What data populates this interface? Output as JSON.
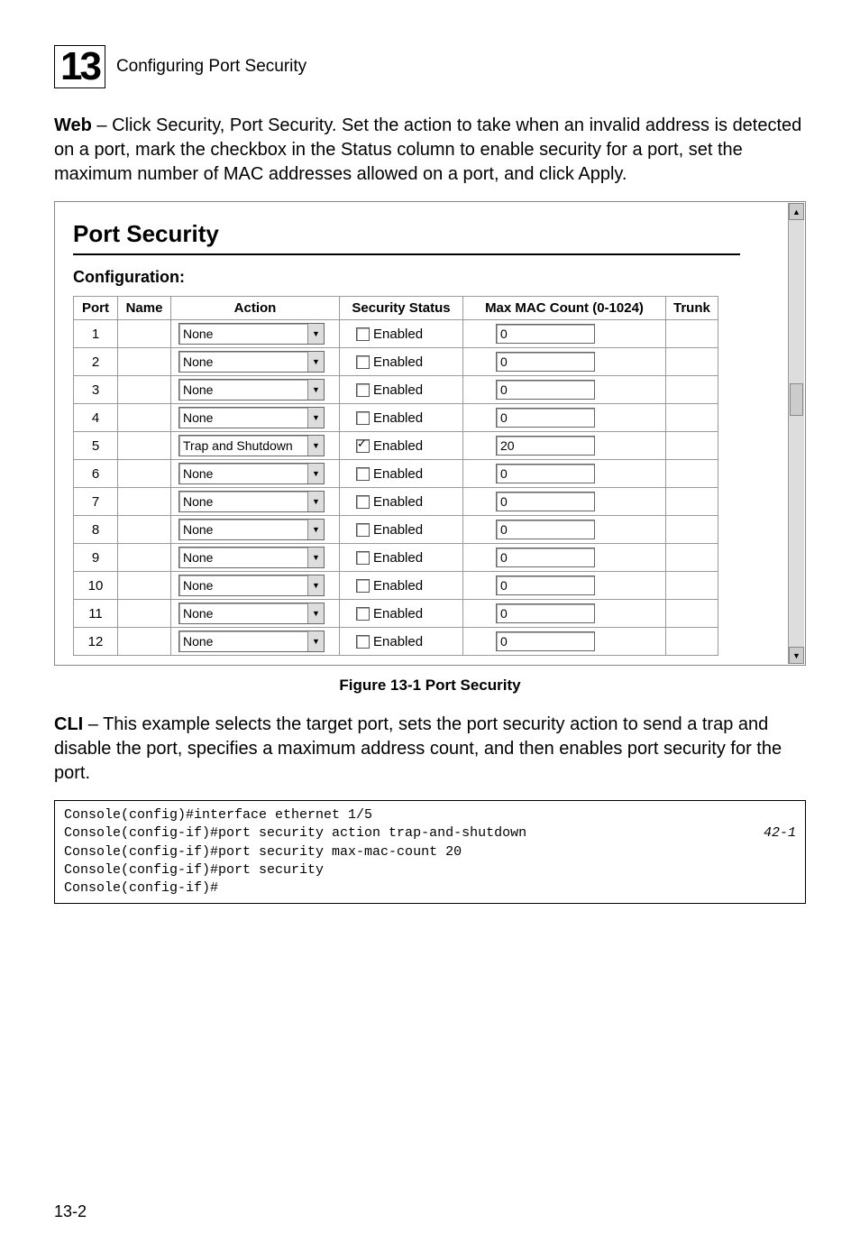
{
  "chapter": {
    "number": "13",
    "title": "Configuring Port Security"
  },
  "intro": "Web – Click Security, Port Security. Set the action to take when an invalid address is detected on a port, mark the checkbox in the Status column to enable security for a port, set the maximum number of MAC addresses allowed on a port, and click Apply.",
  "screenshot": {
    "title": "Port Security",
    "config_label": "Configuration:",
    "headers": {
      "port": "Port",
      "name": "Name",
      "action": "Action",
      "status": "Security Status",
      "count": "Max MAC Count (0-1024)",
      "trunk": "Trunk"
    },
    "status_label": "Enabled",
    "rows": [
      {
        "port": "1",
        "action": "None",
        "checked": false,
        "count": "0"
      },
      {
        "port": "2",
        "action": "None",
        "checked": false,
        "count": "0"
      },
      {
        "port": "3",
        "action": "None",
        "checked": false,
        "count": "0"
      },
      {
        "port": "4",
        "action": "None",
        "checked": false,
        "count": "0"
      },
      {
        "port": "5",
        "action": "Trap and Shutdown",
        "checked": true,
        "count": "20"
      },
      {
        "port": "6",
        "action": "None",
        "checked": false,
        "count": "0"
      },
      {
        "port": "7",
        "action": "None",
        "checked": false,
        "count": "0"
      },
      {
        "port": "8",
        "action": "None",
        "checked": false,
        "count": "0"
      },
      {
        "port": "9",
        "action": "None",
        "checked": false,
        "count": "0"
      },
      {
        "port": "10",
        "action": "None",
        "checked": false,
        "count": "0"
      },
      {
        "port": "11",
        "action": "None",
        "checked": false,
        "count": "0"
      },
      {
        "port": "12",
        "action": "None",
        "checked": false,
        "count": "0"
      }
    ]
  },
  "figure_caption": "Figure 13-1  Port Security",
  "cli_intro": "CLI – This example selects the target port, sets the port security action to send a trap and disable the port, specifies a maximum address count, and then enables port security for the port.",
  "cli": {
    "lines": [
      "Console(config)#interface ethernet 1/5",
      "Console(config-if)#port security action trap-and-shutdown",
      "Console(config-if)#port security max-mac-count 20",
      "Console(config-if)#port security",
      "Console(config-if)#"
    ],
    "ref": "42-1"
  },
  "page_number": "13-2"
}
